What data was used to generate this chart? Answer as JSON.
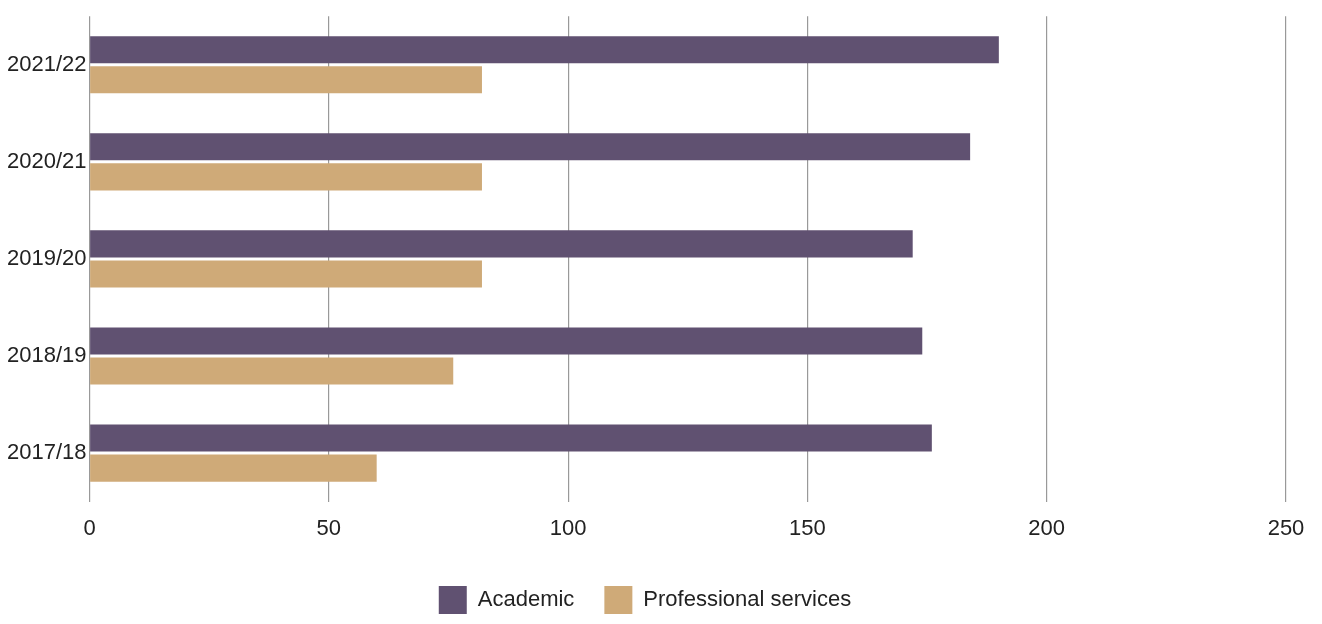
{
  "chart_data": {
    "type": "bar",
    "orientation": "horizontal",
    "categories": [
      "2021/22",
      "2020/21",
      "2019/20",
      "2018/19",
      "2017/18"
    ],
    "series": [
      {
        "name": "Academic",
        "color": "#605171",
        "values": [
          190,
          184,
          172,
          174,
          176
        ]
      },
      {
        "name": "Professional services",
        "color": "#cfaa78",
        "values": [
          82,
          82,
          82,
          76,
          60
        ]
      }
    ],
    "xlim": [
      0,
      250
    ],
    "xticks": [
      0,
      50,
      100,
      150,
      200,
      250
    ],
    "grid": "x",
    "legend": "bottom"
  }
}
